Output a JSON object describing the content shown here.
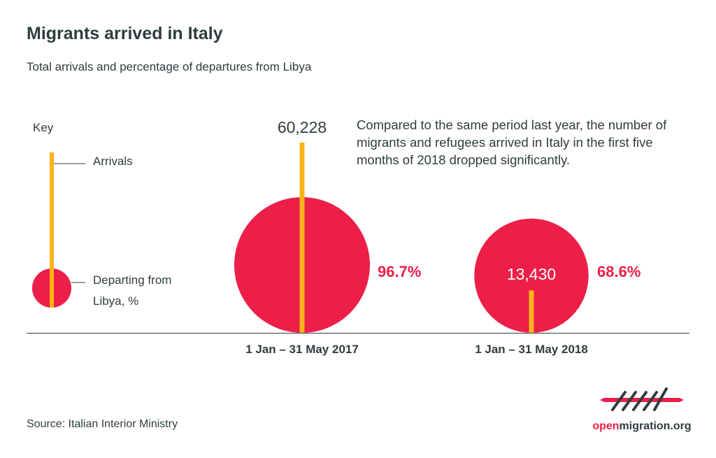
{
  "title": "Migrants arrived in Italy",
  "subtitle": "Total arrivals and percentage of departures from Libya",
  "note": "Compared to the same period last year, the number of migrants and refugees arrived in Italy in the first five months of 2018 dropped significantly.",
  "source": "Source: Italian Interior Ministry",
  "key": {
    "title": "Key",
    "arrivals": "Arrivals",
    "departing_line1": "Departing from",
    "departing_line2": "Libya, %"
  },
  "logo": {
    "text_a": "open",
    "text_b": "migration.org"
  },
  "colors": {
    "bar": "#fbb419",
    "circle": "#ec1f48",
    "text": "#2f3d3f",
    "percent": "#ec1f48"
  },
  "chart_data": {
    "type": "bar",
    "categories": [
      "1 Jan – 31 May 2017",
      "1 Jan – 31 May 2018"
    ],
    "series": [
      {
        "name": "Arrivals",
        "values": [
          60228,
          13430
        ],
        "labels": [
          "60,228",
          "13,430"
        ]
      },
      {
        "name": "Departing from Libya, %",
        "values": [
          96.7,
          68.6
        ],
        "labels": [
          "96.7%",
          "68.6%"
        ]
      }
    ]
  }
}
